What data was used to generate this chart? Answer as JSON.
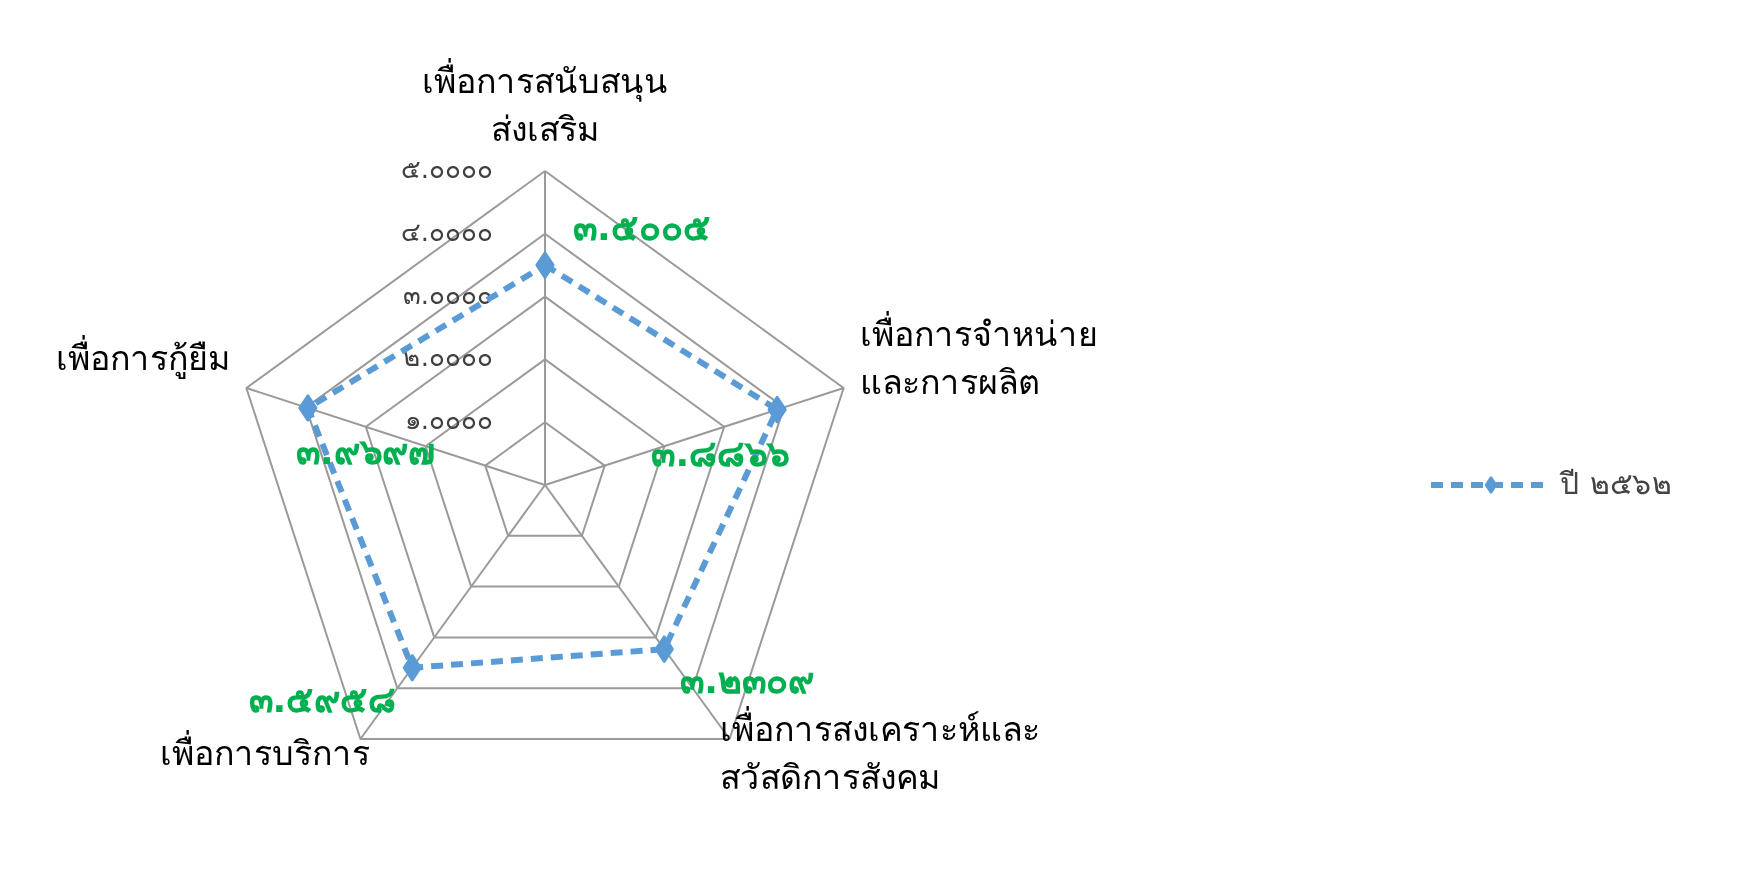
{
  "chart_data": {
    "type": "radar",
    "categories": [
      "เพื่อการสนับสนุน\nส่งเสริม",
      "เพื่อการจำหน่าย\nและการผลิต",
      "เพื่อการสงเคราะห์และ\nสวัสดิการสังคม",
      "เพื่อการบริการ",
      "เพื่อการกู้ยืม"
    ],
    "series": [
      {
        "name": "ปี ๒๕๖๒",
        "color": "#5b9bd5",
        "values": [
          3.5005,
          3.8866,
          3.2309,
          3.5958,
          3.9697
        ],
        "value_labels": [
          "๓.๕๐๐๕",
          "๓.๘๘๖๖",
          "๓.๒๓๐๙",
          "๓.๕๙๕๘",
          "๓.๙๖๙๗"
        ]
      }
    ],
    "ylim": [
      0,
      5
    ],
    "yticks": [
      {
        "value": 1,
        "label": "๑.๐๐๐๐"
      },
      {
        "value": 2,
        "label": "๒.๐๐๐๐"
      },
      {
        "value": 3,
        "label": "๓.๐๐๐๐"
      },
      {
        "value": 4,
        "label": "๔.๐๐๐๐"
      },
      {
        "value": 5,
        "label": "๕.๐๐๐๐"
      }
    ],
    "grid": true,
    "legend": "right",
    "marker": "diamond",
    "line_style": "dashed"
  }
}
